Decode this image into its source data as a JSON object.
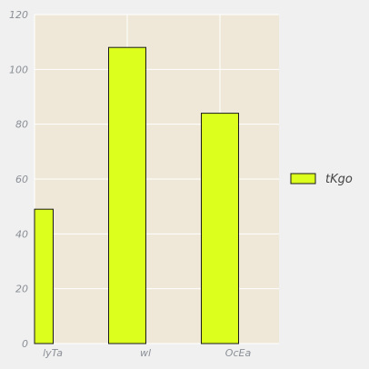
{
  "chart_data": {
    "type": "bar",
    "categories": [
      "lyTa",
      "wl",
      "OcEa"
    ],
    "series": [
      {
        "name": "tKgo",
        "values": [
          49,
          108,
          84
        ]
      }
    ],
    "ylim": [
      0,
      120
    ],
    "yticks": [
      0,
      20,
      40,
      60,
      80,
      100,
      120
    ],
    "grid": true,
    "legend_position": "right",
    "colors": {
      "bar_fill": "#dcff1e",
      "bar_stroke": "#1a1a1a",
      "plot_background": "#efe8d8",
      "grid": "#ffffff",
      "page_background": "#f0f0f0"
    }
  }
}
